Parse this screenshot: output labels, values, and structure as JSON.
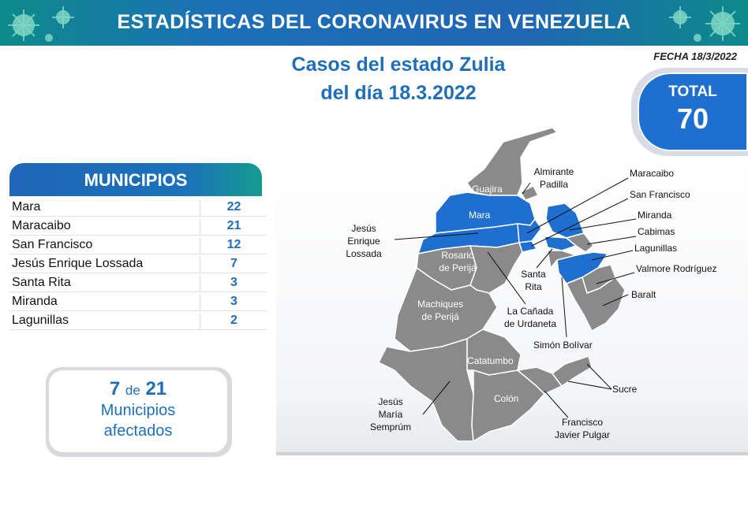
{
  "header": {
    "title": "ESTADÍSTICAS DEL CORONAVIRUS EN VENEZUELA",
    "subtitle_line1": "Casos del estado Zulia",
    "subtitle_line2": "del día 18.3.2022",
    "fecha": "FECHA 18/3/2022"
  },
  "total": {
    "label": "TOTAL",
    "value": "70"
  },
  "municipios": {
    "title": "MUNICIPIOS",
    "rows": [
      {
        "name": "Mara",
        "value": "22"
      },
      {
        "name": "Maracaibo",
        "value": "21"
      },
      {
        "name": "San Francisco",
        "value": "12"
      },
      {
        "name": "Jesús Enrique Lossada",
        "value": "7"
      },
      {
        "name": "Santa Rita",
        "value": "3"
      },
      {
        "name": "Miranda",
        "value": "3"
      },
      {
        "name": "Lagunillas",
        "value": "2"
      }
    ]
  },
  "affected": {
    "count": "7",
    "de": "de",
    "total": "21",
    "line1": "Municipios",
    "line2": "afectados"
  },
  "map": {
    "colors": {
      "affected": "#1f6fd0",
      "unaffected": "#8a8a8a",
      "border": "#ffffff"
    },
    "labels": {
      "guajira": "Guajira",
      "almirante_1": "Almirante",
      "almirante_2": "Padilla",
      "mara": "Mara",
      "jesus_1": "Jesús",
      "jesus_2": "Enrique",
      "jesus_3": "Lossada",
      "rosario_1": "Rosario",
      "rosario_2": "de Perijá",
      "machiques_1": "Machiques",
      "machiques_2": "de Perijá",
      "santa_rita_1": "Santa",
      "santa_rita_2": "Rita",
      "canada_1": "La Cañada",
      "canada_2": "de Urdaneta",
      "simon": "Simón Bolívar",
      "catatumbo": "Catatumbo",
      "colon": "Colón",
      "jmaria_1": "Jesús",
      "jmaria_2": "María",
      "jmaria_3": "Semprúm",
      "francisco_1": "Francisco",
      "francisco_2": "Javier Pulgar",
      "sucre": "Sucre",
      "maracaibo": "Maracaibo",
      "san_francisco": "San Francisco",
      "miranda": "Miranda",
      "cabimas": "Cabimas",
      "lagunillas": "Lagunillas",
      "valmore": "Valmore Rodríguez",
      "baralt": "Baralt"
    }
  }
}
